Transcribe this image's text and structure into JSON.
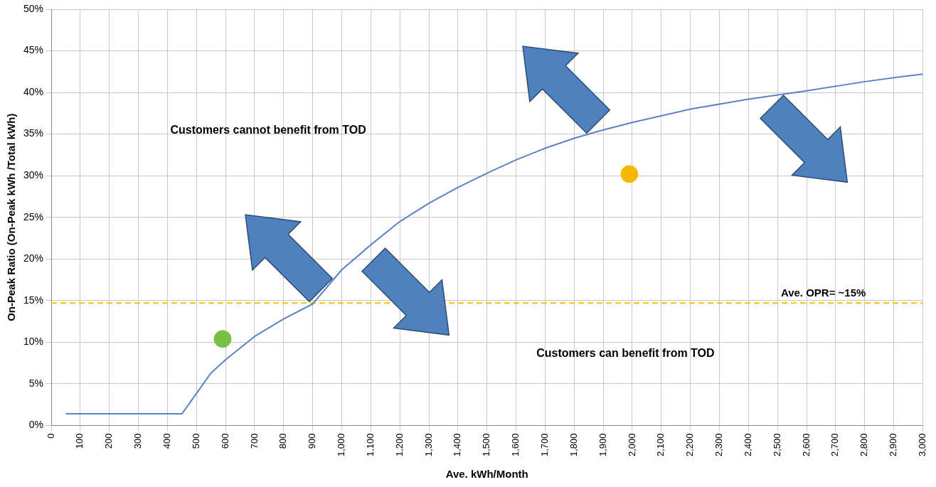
{
  "chart_data": {
    "type": "line",
    "xlabel": "Ave. kWh/Month",
    "ylabel": "On-Peak Ratio (On-Peak kWh /Total kWh)",
    "xlim": [
      0,
      3000
    ],
    "xticks": [
      0,
      100,
      200,
      300,
      400,
      500,
      600,
      700,
      800,
      900,
      {
        "value": 1000,
        "label": "1,000"
      },
      {
        "value": 1100,
        "label": "1,100"
      },
      {
        "value": 1200,
        "label": "1,200"
      },
      {
        "value": 1300,
        "label": "1,300"
      },
      {
        "value": 1400,
        "label": "1,400"
      },
      {
        "value": 1500,
        "label": "1,500"
      },
      {
        "value": 1600,
        "label": "1,600"
      },
      {
        "value": 1700,
        "label": "1,700"
      },
      {
        "value": 1800,
        "label": "1,800"
      },
      {
        "value": 1900,
        "label": "1,900"
      },
      {
        "value": 2000,
        "label": "2,000"
      },
      {
        "value": 2100,
        "label": "2,100"
      },
      {
        "value": 2200,
        "label": "2,200"
      },
      {
        "value": 2300,
        "label": "2,300"
      },
      {
        "value": 2400,
        "label": "2,400"
      },
      {
        "value": 2500,
        "label": "2,500"
      },
      {
        "value": 2600,
        "label": "2,600"
      },
      {
        "value": 2700,
        "label": "2,700"
      },
      {
        "value": 2800,
        "label": "2,800"
      },
      {
        "value": 2900,
        "label": "2,900"
      },
      {
        "value": 3000,
        "label": "3,000"
      }
    ],
    "ylim": [
      0,
      50
    ],
    "yticks": [
      {
        "value": 0,
        "label": "0%"
      },
      {
        "value": 5,
        "label": "5%"
      },
      {
        "value": 10,
        "label": "10%"
      },
      {
        "value": 15,
        "label": "15%"
      },
      {
        "value": 20,
        "label": "20%"
      },
      {
        "value": 25,
        "label": "25%"
      },
      {
        "value": 30,
        "label": "30%"
      },
      {
        "value": 35,
        "label": "35%"
      },
      {
        "value": 40,
        "label": "40%"
      },
      {
        "value": 45,
        "label": "45%"
      },
      {
        "value": 50,
        "label": "50%"
      }
    ],
    "grid": true,
    "legend": false,
    "series": [
      {
        "color": "#5b83c6",
        "marker": "none",
        "x": [
          50,
          450,
          550,
          600,
          700,
          800,
          900,
          1000,
          1100,
          1200,
          1300,
          1400,
          1500,
          1600,
          1700,
          1800,
          1900,
          2000,
          2200,
          2400,
          2600,
          2800,
          2950,
          3000
        ],
        "values": [
          1.4,
          1.4,
          6.3,
          7.9,
          10.7,
          12.8,
          14.6,
          18.7,
          21.7,
          24.5,
          26.7,
          28.6,
          30.3,
          31.9,
          33.3,
          34.5,
          35.5,
          36.4,
          38.0,
          39.2,
          40.2,
          41.3,
          42.0,
          42.2
        ]
      },
      {
        "type": "scatter",
        "color": "#7ac143",
        "marker": "circle",
        "x": [
          590
        ],
        "values": [
          10.4
        ]
      },
      {
        "type": "scatter",
        "color": "#f5b800",
        "marker": "circle",
        "x": [
          1990
        ],
        "values": [
          30.2
        ]
      }
    ],
    "ref_lines": [
      {
        "axis": "y",
        "value": 14.7,
        "label": "Ave. OPR= ~15%",
        "color": "#f5c200",
        "line_style": "dashed"
      }
    ],
    "annotations": [
      "Customers cannot benefit from TOD",
      "Customers can benefit from TOD"
    ]
  }
}
